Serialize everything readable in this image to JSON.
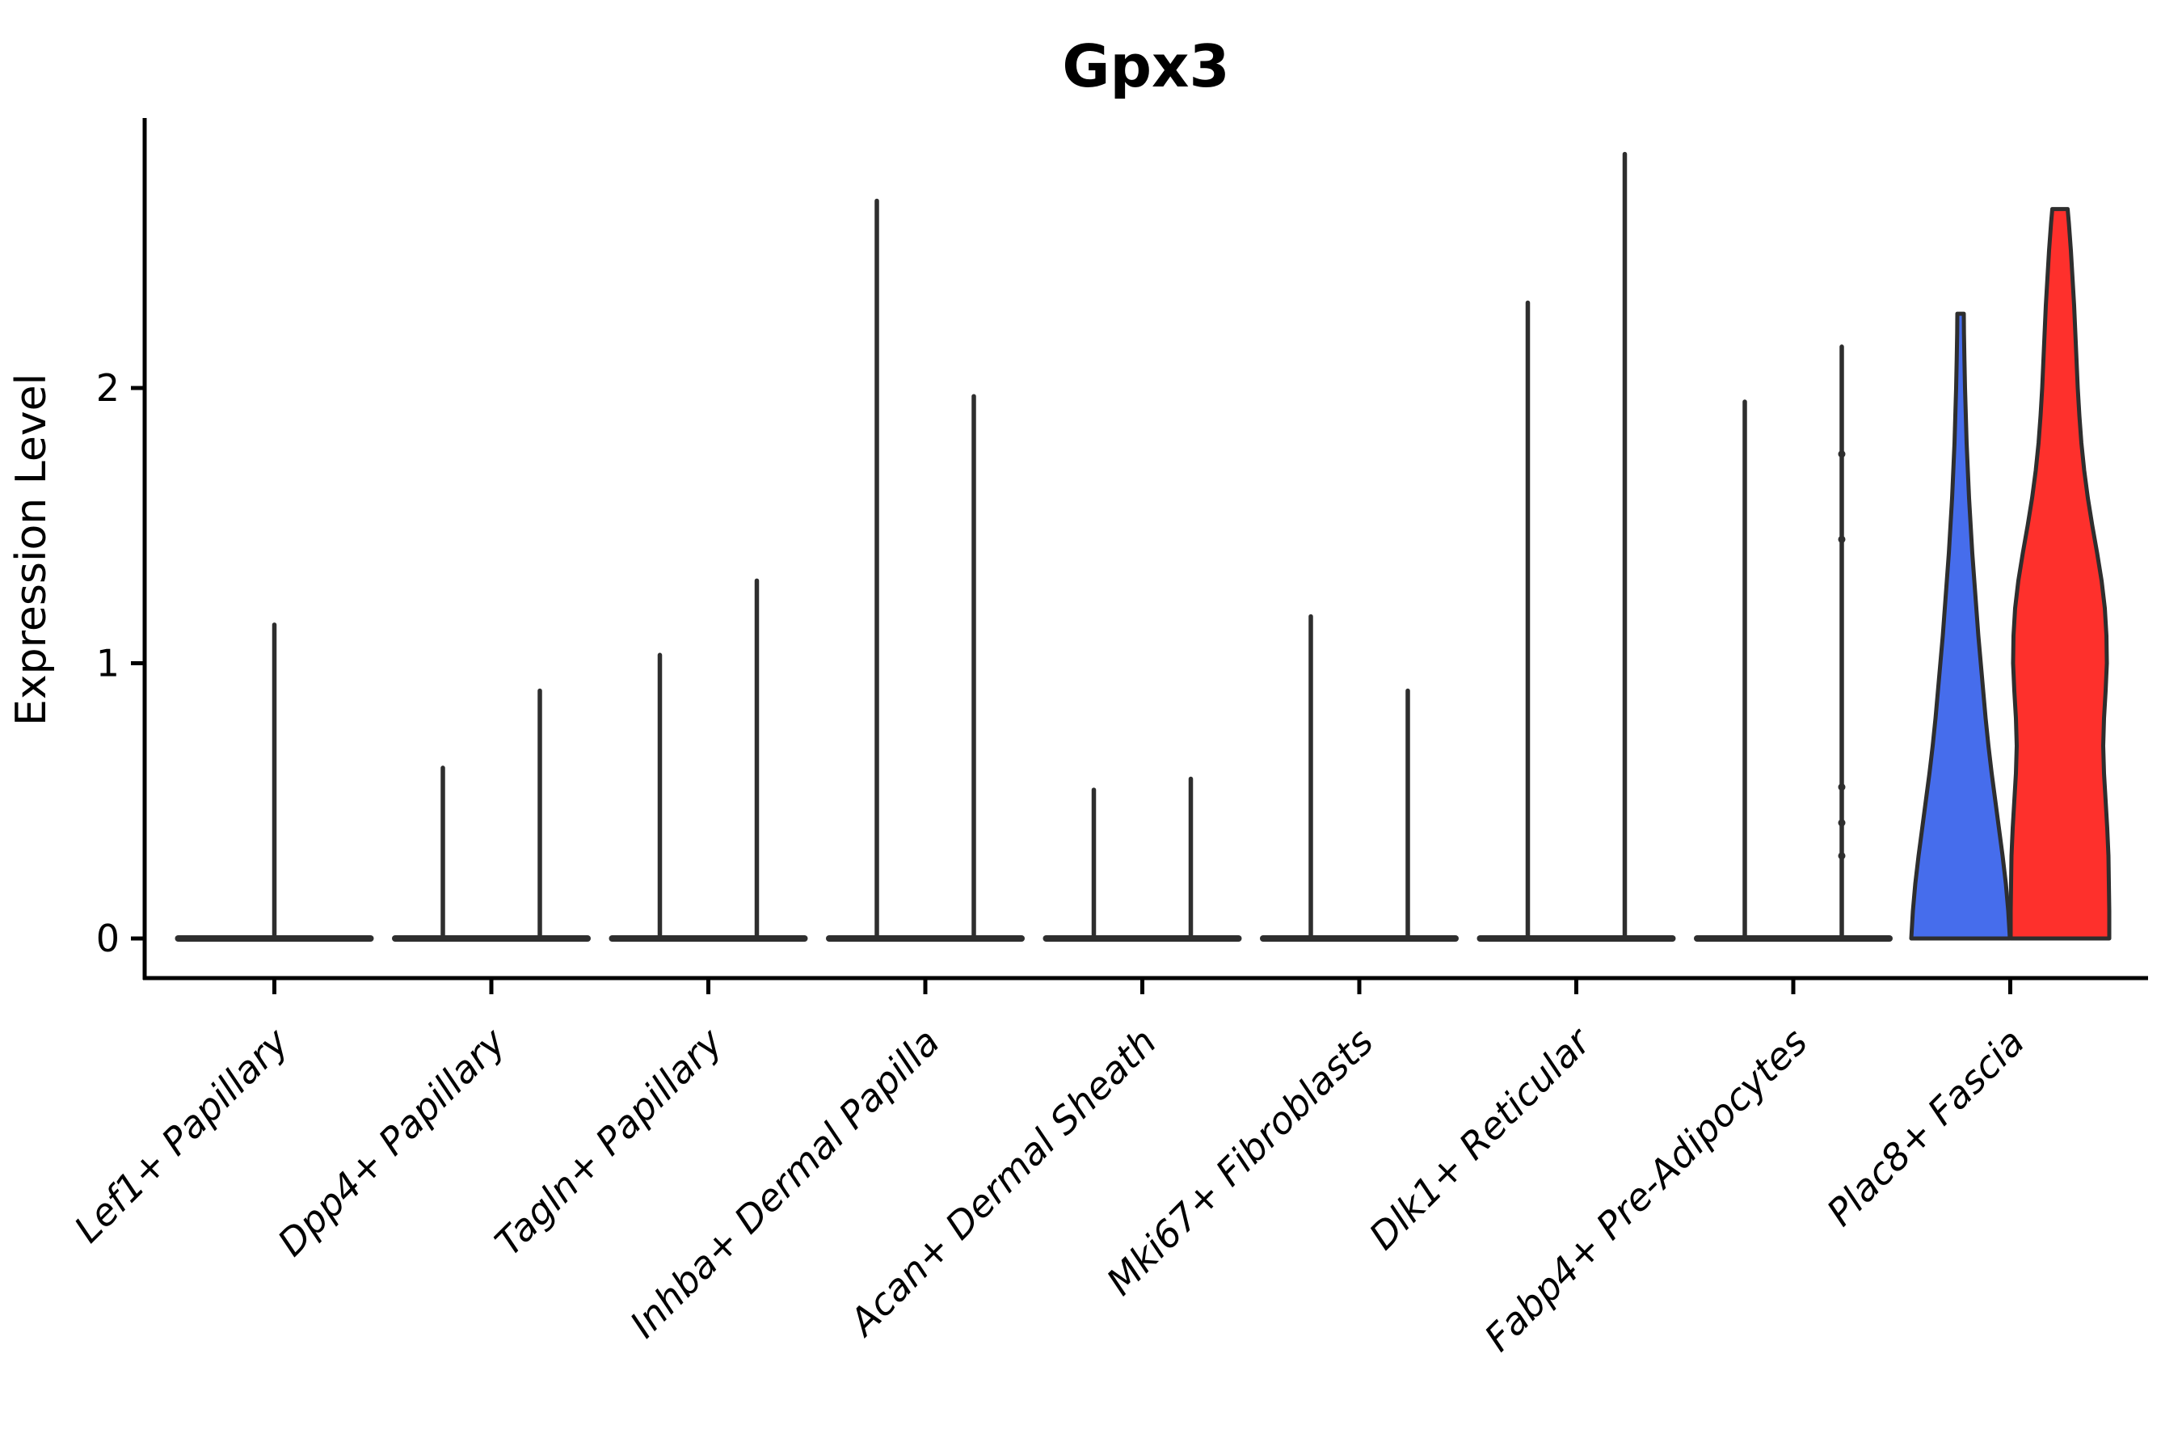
{
  "figure": {
    "background": "#ffffff"
  },
  "chart_data": {
    "type": "violin",
    "title": "Gpx3",
    "xlabel": "",
    "ylabel": "Expression Level",
    "yticks": [
      0,
      1,
      2
    ],
    "ylim": [
      0,
      3.05
    ],
    "grid": false,
    "legend": "none",
    "split_groups": 2,
    "line_color": "#2e2e2e",
    "categories": [
      {
        "label": "Lef1+ Papillary",
        "spikes": [
          {
            "pos": 0,
            "max": 1.14,
            "full_width": true
          }
        ]
      },
      {
        "label": "Dpp4+ Papillary",
        "spikes": [
          {
            "pos": -1,
            "max": 0.62
          },
          {
            "pos": 1,
            "max": 0.9
          }
        ]
      },
      {
        "label": "Tagln+ Papillary",
        "spikes": [
          {
            "pos": -1,
            "max": 1.03
          },
          {
            "pos": 1,
            "max": 1.3
          }
        ]
      },
      {
        "label": "Inhba+ Dermal Papilla",
        "spikes": [
          {
            "pos": -1,
            "max": 2.68
          },
          {
            "pos": 1,
            "max": 1.97
          }
        ]
      },
      {
        "label": "Acan+ Dermal Sheath",
        "spikes": [
          {
            "pos": -1,
            "max": 0.54
          },
          {
            "pos": 1,
            "max": 0.58
          }
        ]
      },
      {
        "label": "Mki67+ Fibroblasts",
        "spikes": [
          {
            "pos": -1,
            "max": 1.17
          },
          {
            "pos": 1,
            "max": 0.9
          }
        ]
      },
      {
        "label": "Dlk1+ Reticular",
        "spikes": [
          {
            "pos": -1,
            "max": 2.31
          },
          {
            "pos": 1,
            "max": 2.85
          }
        ]
      },
      {
        "label": "Fabp4+ Pre-Adipocytes",
        "spikes": [
          {
            "pos": -1,
            "max": 1.95
          },
          {
            "pos": 1,
            "max": 2.15,
            "points": [
              1.76,
              1.45,
              0.55,
              0.42,
              0.3
            ]
          }
        ]
      },
      {
        "label": "Plac8+ Fascia",
        "filled_violins": [
          {
            "name": "blue-violin",
            "fill": "#466dec",
            "max": 2.27,
            "profile": [
              [
                0.0,
                61
              ],
              [
                0.1,
                59
              ],
              [
                0.2,
                56
              ],
              [
                0.3,
                52
              ],
              [
                0.4,
                47.5
              ],
              [
                0.5,
                43
              ],
              [
                0.6,
                38.5
              ],
              [
                0.7,
                34.5
              ],
              [
                0.8,
                31
              ],
              [
                0.9,
                28
              ],
              [
                1.0,
                25
              ],
              [
                1.1,
                22
              ],
              [
                1.2,
                19.5
              ],
              [
                1.3,
                17
              ],
              [
                1.4,
                14.5
              ],
              [
                1.5,
                12.5
              ],
              [
                1.6,
                10.5
              ],
              [
                1.7,
                9
              ],
              [
                1.8,
                7.5
              ],
              [
                1.9,
                6.5
              ],
              [
                2.0,
                5.5
              ],
              [
                2.1,
                4.8
              ],
              [
                2.2,
                4.2
              ],
              [
                2.27,
                4
              ]
            ]
          },
          {
            "name": "red-violin",
            "fill": "#fe302c",
            "max": 2.65,
            "profile": [
              [
                0.0,
                61
              ],
              [
                0.1,
                61
              ],
              [
                0.2,
                60.5
              ],
              [
                0.3,
                60
              ],
              [
                0.4,
                58.5
              ],
              [
                0.5,
                56.5
              ],
              [
                0.6,
                54.5
              ],
              [
                0.7,
                53.5
              ],
              [
                0.8,
                54.5
              ],
              [
                0.9,
                56.5
              ],
              [
                1.0,
                58
              ],
              [
                1.1,
                57.5
              ],
              [
                1.2,
                55.5
              ],
              [
                1.3,
                51.5
              ],
              [
                1.4,
                46
              ],
              [
                1.5,
                40
              ],
              [
                1.6,
                34.5
              ],
              [
                1.7,
                30
              ],
              [
                1.8,
                26.5
              ],
              [
                1.9,
                24
              ],
              [
                2.0,
                22
              ],
              [
                2.1,
                20.5
              ],
              [
                2.2,
                19
              ],
              [
                2.3,
                17.5
              ],
              [
                2.4,
                15.5
              ],
              [
                2.5,
                13.5
              ],
              [
                2.6,
                11
              ],
              [
                2.65,
                9.5
              ]
            ]
          }
        ]
      }
    ]
  }
}
